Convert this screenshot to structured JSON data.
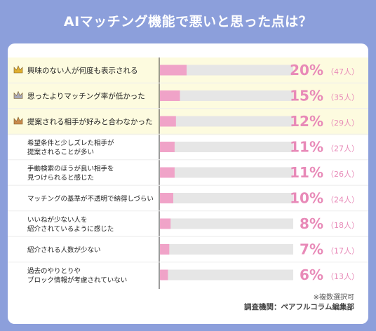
{
  "chart_data": {
    "type": "bar",
    "title": "AIマッチング機能で悪いと思った点は？",
    "categories": [
      [
        "興味のない人が何度も表示される"
      ],
      [
        "思ったよりマッチング率が低かった"
      ],
      [
        "提案される相手が好みと合わなかった"
      ],
      [
        "希望条件と少しズレた相手が",
        "提案されることが多い"
      ],
      [
        "手動検索のほうが良い相手を",
        "見つけられると感じた"
      ],
      [
        "マッチングの基準が不透明で納得しづらい"
      ],
      [
        "いいねが少ない人を",
        "紹介されているように感じた"
      ],
      [
        "紹介される人数が少ない"
      ],
      [
        "過去のやりとりや",
        "ブロック情報が考慮されていない"
      ]
    ],
    "values": [
      20,
      15,
      12,
      11,
      11,
      10,
      8,
      7,
      6
    ],
    "counts": [
      47,
      35,
      29,
      27,
      26,
      24,
      18,
      17,
      13
    ],
    "value_labels": [
      "20%",
      "15%",
      "12%",
      "11%",
      "11%",
      "10%",
      "8%",
      "7%",
      "6%"
    ],
    "count_labels": [
      "（47人）",
      "（35人）",
      "（29人）",
      "（27人）",
      "（26人）",
      "（24人）",
      "（18人）",
      "（17人）",
      "（13人）"
    ],
    "xlim": [
      0,
      100
    ],
    "ranks": [
      "gold",
      "silver",
      "bronze"
    ],
    "colors": {
      "bar": "#f0a3c8",
      "track": "#e6e6e6",
      "value_text": "#e88ab8",
      "highlight_bg": "#fdfbdf",
      "gold": "#e0b030",
      "silver": "#a9a9b8",
      "bronze": "#c98a4e"
    }
  },
  "footer": {
    "note": "※複数選択可",
    "source": "調査機関：ペアフルコラム編集部"
  }
}
